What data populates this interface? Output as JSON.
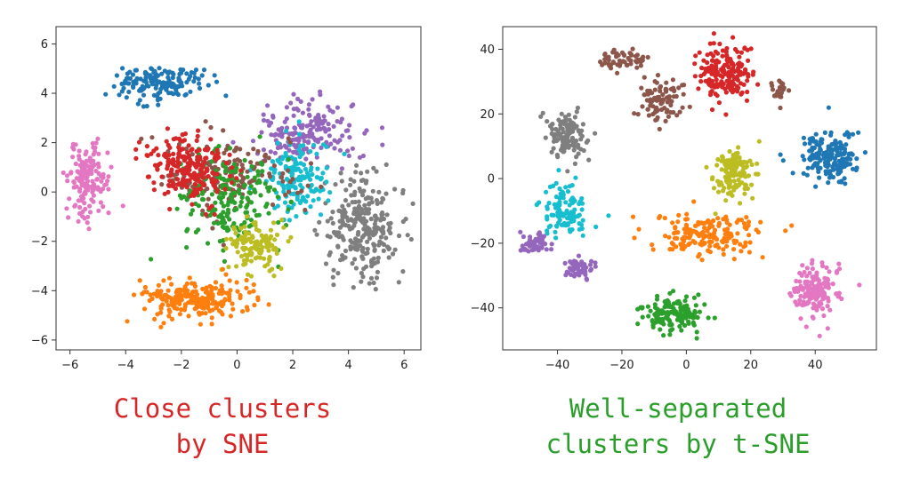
{
  "colors": {
    "tab:blue": "#1f77b4",
    "tab:orange": "#ff7f0e",
    "tab:green": "#2ca02c",
    "tab:red": "#d62728",
    "tab:purple": "#9467bd",
    "tab:brown": "#8c564b",
    "tab:pink": "#e377c2",
    "tab:gray": "#7f7f7f",
    "tab:olive": "#bcbd22",
    "tab:cyan": "#17becf"
  },
  "captions": {
    "left": {
      "line1": "Close clusters",
      "line2": "by SNE",
      "color": "#d62728"
    },
    "right": {
      "line1": "Well-separated",
      "line2": "clusters by t-SNE",
      "color": "#2a9d2a"
    }
  },
  "chart_data": [
    {
      "type": "scatter",
      "title": "",
      "xlabel": "",
      "ylabel": "",
      "xlim": [
        -6.5,
        6.6
      ],
      "ylim": [
        -6.4,
        6.7
      ],
      "xticks": [
        -6,
        -4,
        -2,
        0,
        2,
        4,
        6
      ],
      "yticks": [
        -6,
        -4,
        -2,
        0,
        2,
        4,
        6
      ],
      "grid": false,
      "legend": "none",
      "clusters": [
        {
          "color": "tab:blue",
          "center": [
            -2.8,
            4.4
          ],
          "spread": [
            1.4,
            0.6
          ],
          "count": 160
        },
        {
          "color": "tab:purple",
          "center": [
            2.5,
            2.4
          ],
          "spread": [
            1.6,
            1.2
          ],
          "count": 180
        },
        {
          "color": "tab:pink",
          "center": [
            -5.3,
            0.5
          ],
          "spread": [
            0.7,
            1.4
          ],
          "count": 150
        },
        {
          "color": "tab:gray",
          "center": [
            4.5,
            -1.5
          ],
          "spread": [
            1.3,
            2.0
          ],
          "count": 260
        },
        {
          "color": "tab:cyan",
          "center": [
            2.2,
            0.5
          ],
          "spread": [
            1.1,
            1.4
          ],
          "count": 150
        },
        {
          "color": "tab:brown",
          "center": [
            -0.3,
            0.7
          ],
          "spread": [
            2.2,
            1.6
          ],
          "count": 160
        },
        {
          "color": "tab:green",
          "center": [
            -0.3,
            -0.3
          ],
          "spread": [
            1.8,
            1.8
          ],
          "count": 200
        },
        {
          "color": "tab:olive",
          "center": [
            0.6,
            -2.2
          ],
          "spread": [
            0.9,
            0.8
          ],
          "count": 120
        },
        {
          "color": "tab:red",
          "center": [
            -1.8,
            1.0
          ],
          "spread": [
            1.4,
            1.1
          ],
          "count": 220
        },
        {
          "color": "tab:orange",
          "center": [
            -1.5,
            -4.3
          ],
          "spread": [
            1.9,
            0.7
          ],
          "count": 220
        }
      ]
    },
    {
      "type": "scatter",
      "title": "",
      "xlabel": "",
      "ylabel": "",
      "xlim": [
        -57,
        59
      ],
      "ylim": [
        -53,
        47
      ],
      "xticks": [
        -40,
        -20,
        0,
        20,
        40
      ],
      "yticks": [
        -40,
        -20,
        0,
        20,
        40
      ],
      "grid": false,
      "legend": "none",
      "clusters": [
        {
          "color": "tab:brown",
          "center": [
            -20,
            37
          ],
          "spread": [
            7,
            3
          ],
          "count": 60
        },
        {
          "color": "tab:brown",
          "center": [
            -8,
            24
          ],
          "spread": [
            6,
            6
          ],
          "count": 90
        },
        {
          "color": "tab:brown",
          "center": [
            29,
            27
          ],
          "spread": [
            3,
            3
          ],
          "count": 25
        },
        {
          "color": "tab:red",
          "center": [
            12,
            33
          ],
          "spread": [
            8,
            8
          ],
          "count": 170
        },
        {
          "color": "tab:gray",
          "center": [
            -37,
            13
          ],
          "spread": [
            6,
            7
          ],
          "count": 120
        },
        {
          "color": "tab:blue",
          "center": [
            44,
            7
          ],
          "spread": [
            8,
            7
          ],
          "count": 190
        },
        {
          "color": "tab:olive",
          "center": [
            15,
            2
          ],
          "spread": [
            5,
            7
          ],
          "count": 130
        },
        {
          "color": "tab:cyan",
          "center": [
            -38,
            -10
          ],
          "spread": [
            6,
            8
          ],
          "count": 110
        },
        {
          "color": "tab:orange",
          "center": [
            6,
            -18
          ],
          "spread": [
            15,
            6
          ],
          "count": 170
        },
        {
          "color": "tab:purple",
          "center": [
            -47,
            -20
          ],
          "spread": [
            4,
            3
          ],
          "count": 50
        },
        {
          "color": "tab:purple",
          "center": [
            -33,
            -28
          ],
          "spread": [
            5,
            3
          ],
          "count": 50
        },
        {
          "color": "tab:pink",
          "center": [
            40,
            -35
          ],
          "spread": [
            7,
            8
          ],
          "count": 150
        },
        {
          "color": "tab:green",
          "center": [
            -5,
            -42
          ],
          "spread": [
            9,
            5
          ],
          "count": 150
        }
      ]
    }
  ]
}
